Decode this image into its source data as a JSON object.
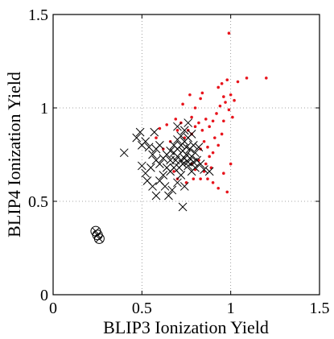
{
  "chart_data": {
    "type": "scatter",
    "xlabel": "BLIP3 Ionization Yield",
    "ylabel": "BLIP4 Ionization Yield",
    "xlim": [
      0,
      1.5
    ],
    "ylim": [
      0,
      1.5
    ],
    "xticks": [
      0,
      0.5,
      1,
      1.5
    ],
    "yticks": [
      0,
      0.5,
      1,
      1.5
    ],
    "xtick_labels": [
      "0",
      "0.5",
      "1",
      "1.5"
    ],
    "ytick_labels": [
      "0",
      "0.5",
      "1",
      "1.5"
    ],
    "grid": true,
    "series": [
      {
        "marker": "dot",
        "color": "#e8141c",
        "points": [
          [
            0.99,
            1.4
          ],
          [
            1.2,
            1.16
          ],
          [
            1.09,
            1.16
          ],
          [
            1.04,
            1.14
          ],
          [
            0.98,
            1.15
          ],
          [
            0.95,
            1.13
          ],
          [
            0.93,
            1.11
          ],
          [
            0.96,
            1.06
          ],
          [
            1.0,
            1.07
          ],
          [
            1.02,
            1.04
          ],
          [
            0.97,
            1.03
          ],
          [
            0.94,
            1.01
          ],
          [
            0.99,
            0.99
          ],
          [
            1.01,
            0.95
          ],
          [
            0.96,
            0.93
          ],
          [
            0.92,
            0.97
          ],
          [
            0.9,
            0.93
          ],
          [
            0.88,
            0.9
          ],
          [
            0.86,
            0.94
          ],
          [
            0.84,
            0.88
          ],
          [
            0.82,
            0.92
          ],
          [
            0.8,
            0.9
          ],
          [
            0.78,
            0.86
          ],
          [
            0.76,
            0.88
          ],
          [
            0.74,
            0.84
          ],
          [
            0.85,
            0.82
          ],
          [
            0.87,
            0.79
          ],
          [
            0.83,
            0.78
          ],
          [
            0.88,
            0.74
          ],
          [
            0.9,
            0.76
          ],
          [
            0.82,
            0.72
          ],
          [
            0.78,
            0.7
          ],
          [
            0.8,
            0.67
          ],
          [
            0.85,
            0.66
          ],
          [
            0.87,
            0.62
          ],
          [
            0.9,
            0.6
          ],
          [
            0.93,
            0.57
          ],
          [
            0.96,
            0.65
          ],
          [
            0.98,
            0.55
          ],
          [
            1.0,
            0.7
          ],
          [
            0.75,
            0.6
          ],
          [
            0.7,
            0.62
          ],
          [
            0.68,
            0.66
          ],
          [
            0.66,
            0.82
          ],
          [
            0.7,
            0.88
          ],
          [
            0.72,
            0.92
          ],
          [
            0.78,
            0.95
          ],
          [
            0.8,
            1.0
          ],
          [
            0.83,
            1.05
          ],
          [
            0.84,
            1.08
          ],
          [
            0.77,
            1.07
          ],
          [
            0.73,
            1.02
          ],
          [
            0.69,
            0.94
          ],
          [
            0.64,
            0.91
          ],
          [
            0.6,
            0.89
          ],
          [
            0.62,
            0.78
          ],
          [
            0.58,
            0.84
          ],
          [
            0.91,
            0.84
          ],
          [
            0.93,
            0.8
          ],
          [
            0.95,
            0.86
          ],
          [
            0.89,
            0.68
          ],
          [
            0.86,
            0.7
          ],
          [
            0.79,
            0.62
          ],
          [
            0.83,
            0.62
          ]
        ]
      },
      {
        "marker": "x",
        "color": "#000000",
        "points": [
          [
            0.4,
            0.76
          ],
          [
            0.47,
            0.84
          ],
          [
            0.49,
            0.87
          ],
          [
            0.5,
            0.8
          ],
          [
            0.52,
            0.82
          ],
          [
            0.54,
            0.79
          ],
          [
            0.56,
            0.75
          ],
          [
            0.58,
            0.72
          ],
          [
            0.55,
            0.68
          ],
          [
            0.52,
            0.65
          ],
          [
            0.5,
            0.69
          ],
          [
            0.53,
            0.61
          ],
          [
            0.56,
            0.58
          ],
          [
            0.58,
            0.53
          ],
          [
            0.65,
            0.53
          ],
          [
            0.67,
            0.56
          ],
          [
            0.7,
            0.6
          ],
          [
            0.72,
            0.64
          ],
          [
            0.74,
            0.58
          ],
          [
            0.73,
            0.47
          ],
          [
            0.62,
            0.64
          ],
          [
            0.64,
            0.68
          ],
          [
            0.66,
            0.72
          ],
          [
            0.68,
            0.76
          ],
          [
            0.7,
            0.78
          ],
          [
            0.72,
            0.8
          ],
          [
            0.74,
            0.82
          ],
          [
            0.76,
            0.84
          ],
          [
            0.78,
            0.86
          ],
          [
            0.75,
            0.75
          ],
          [
            0.77,
            0.73
          ],
          [
            0.79,
            0.71
          ],
          [
            0.73,
            0.7
          ],
          [
            0.71,
            0.68
          ],
          [
            0.69,
            0.72
          ],
          [
            0.76,
            0.69
          ],
          [
            0.78,
            0.66
          ],
          [
            0.8,
            0.76
          ],
          [
            0.82,
            0.79
          ],
          [
            0.74,
            0.88
          ],
          [
            0.72,
            0.85
          ],
          [
            0.7,
            0.83
          ],
          [
            0.68,
            0.8
          ],
          [
            0.66,
            0.77
          ],
          [
            0.64,
            0.75
          ],
          [
            0.62,
            0.73
          ],
          [
            0.6,
            0.7
          ],
          [
            0.58,
            0.78
          ],
          [
            0.6,
            0.8
          ],
          [
            0.75,
            0.79
          ],
          [
            0.73,
            0.77
          ],
          [
            0.77,
            0.78
          ],
          [
            0.79,
            0.8
          ],
          [
            0.81,
            0.72
          ],
          [
            0.83,
            0.7
          ],
          [
            0.7,
            0.74
          ],
          [
            0.74,
            0.73
          ],
          [
            0.76,
            0.71
          ],
          [
            0.72,
            0.72
          ],
          [
            0.78,
            0.74
          ],
          [
            0.8,
            0.68
          ],
          [
            0.68,
            0.68
          ],
          [
            0.66,
            0.66
          ],
          [
            0.85,
            0.67
          ],
          [
            0.88,
            0.66
          ],
          [
            0.7,
            0.9
          ],
          [
            0.76,
            0.92
          ],
          [
            0.6,
            0.61
          ],
          [
            0.63,
            0.58
          ],
          [
            0.57,
            0.87
          ]
        ]
      },
      {
        "marker": "circle-x",
        "color": "#000000",
        "points": [
          [
            0.24,
            0.34
          ],
          [
            0.25,
            0.32
          ],
          [
            0.26,
            0.3
          ]
        ]
      }
    ]
  }
}
